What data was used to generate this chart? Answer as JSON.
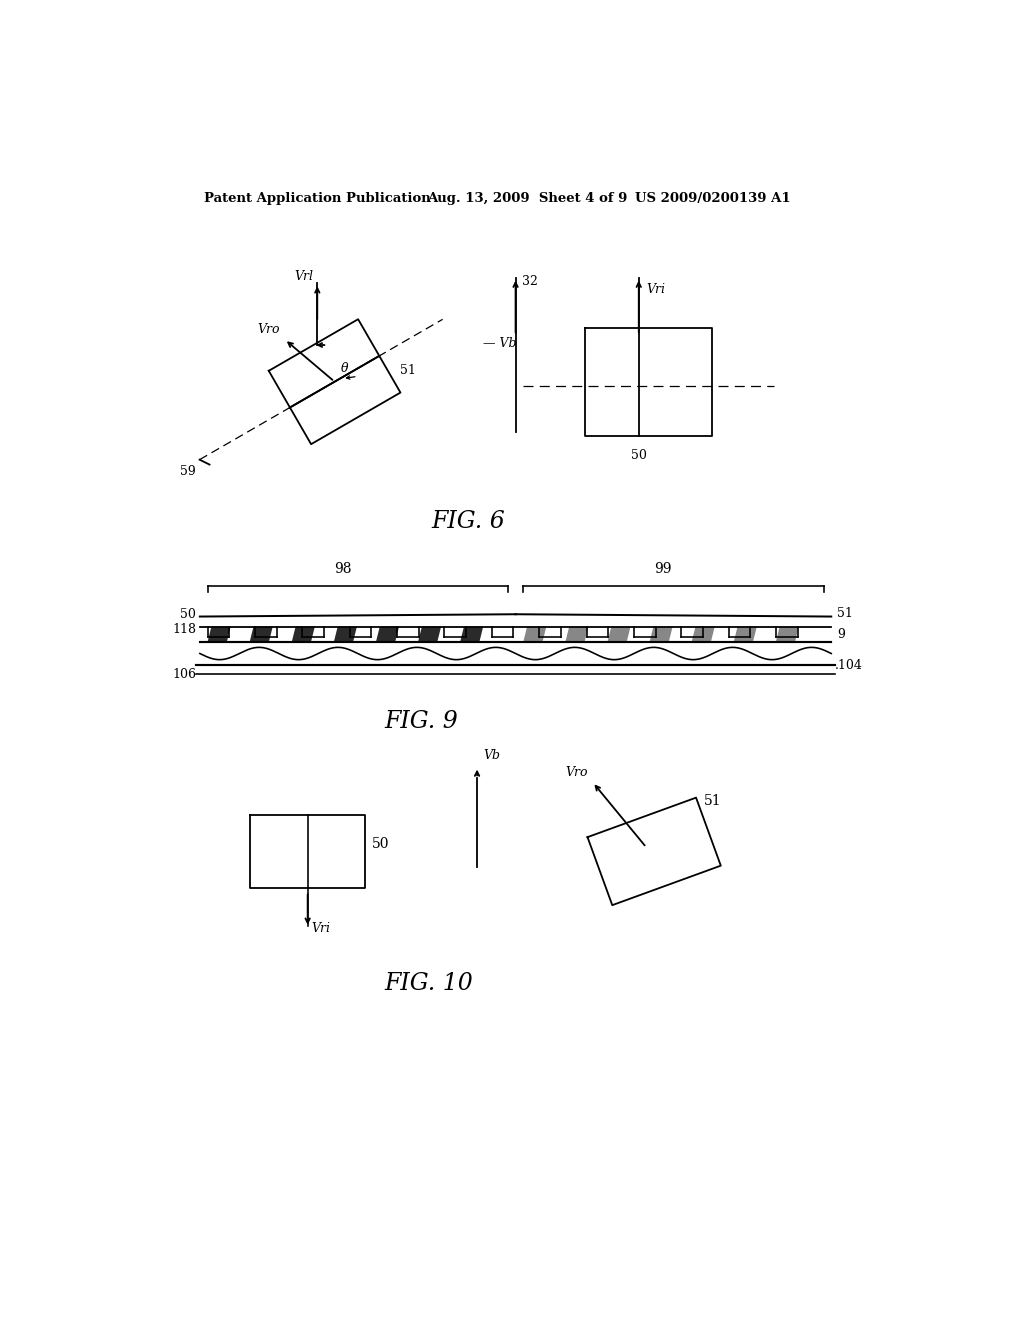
{
  "bg_color": "#ffffff",
  "header_left": "Patent Application Publication",
  "header_mid": "Aug. 13, 2009  Sheet 4 of 9",
  "header_right": "US 2009/0200139 A1",
  "fig6_caption": "FIG. 6",
  "fig9_caption": "FIG. 9",
  "fig10_caption": "FIG. 10"
}
